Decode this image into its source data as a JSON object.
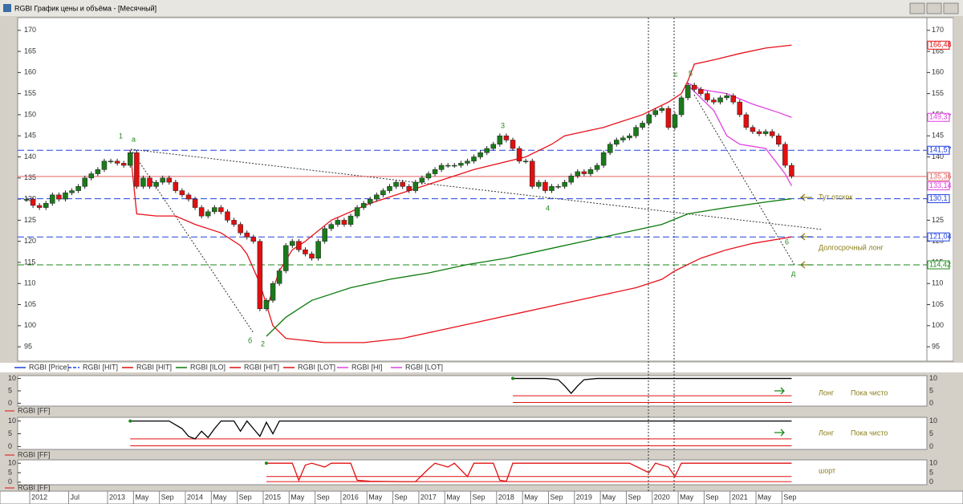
{
  "window_title": "RGBI График цены и объёма - [Месячный]",
  "chart_data": {
    "type": "candlestick",
    "categories": [
      null,
      "2012",
      null,
      null,
      null,
      null,
      null,
      "Jul",
      null,
      null,
      null,
      null,
      null,
      "2013",
      null,
      null,
      null,
      "May",
      null,
      null,
      null,
      "Sep",
      null,
      null,
      null,
      "2014",
      null,
      null,
      null,
      "May",
      null,
      null,
      null,
      "Sep",
      null,
      null,
      null,
      "2015",
      null,
      null,
      null,
      "May",
      null,
      null,
      null,
      "Sep",
      null,
      null,
      null,
      "2016",
      null,
      null,
      null,
      "May",
      null,
      null,
      null,
      "Sep",
      null,
      null,
      null,
      "2017",
      null,
      null,
      null,
      "May",
      null,
      null,
      null,
      "Sep",
      null,
      null,
      null,
      "2018",
      null,
      null,
      null,
      "May",
      null,
      null,
      null,
      "Sep",
      null,
      null,
      null,
      "2019",
      null,
      null,
      null,
      "May",
      null,
      null,
      null,
      "Sep",
      null,
      null,
      null,
      "2020",
      null,
      null,
      null,
      "May",
      null,
      null,
      null,
      "Sep",
      null,
      null,
      null,
      "2021",
      null,
      null,
      null,
      "May",
      null,
      null,
      null,
      "Sep",
      null
    ],
    "close": [
      130,
      128.5,
      128,
      129,
      131,
      130,
      131.5,
      132,
      133,
      135,
      136,
      137,
      139,
      139,
      138.5,
      138,
      141,
      133,
      135,
      133,
      134,
      135,
      134,
      132,
      131,
      130,
      128,
      126,
      127,
      128,
      127,
      125,
      124,
      122,
      121,
      120,
      104,
      106,
      110,
      113,
      119,
      120,
      118,
      117,
      116,
      120,
      123,
      124,
      125,
      124,
      126,
      128,
      129,
      130,
      131,
      132,
      133,
      134,
      133,
      132,
      134,
      135,
      136,
      137,
      138,
      138,
      138,
      138.5,
      139,
      140,
      141,
      142,
      143,
      145,
      144,
      142,
      139,
      139,
      133,
      134,
      132,
      133,
      133,
      134,
      135.5,
      136.5,
      136,
      137,
      138,
      141,
      143,
      144,
      144.5,
      145,
      147,
      148,
      150,
      151,
      151.5,
      147,
      150,
      154,
      157,
      156,
      155,
      153.5,
      153,
      154,
      154.5,
      153,
      150,
      147,
      146,
      145.5,
      146,
      145,
      143,
      138,
      135.5
    ],
    "up_color": "#1a7a1a",
    "down_color": "#e01010",
    "ylim": [
      91.6,
      173.0
    ],
    "yticks": [
      170,
      165,
      160,
      155,
      150,
      145,
      140,
      135,
      130,
      125,
      120,
      115,
      110,
      105,
      100,
      95
    ],
    "overlays": [
      {
        "color": "#e8101a",
        "x": [
          37,
          39,
          41,
          43,
          47,
          53,
          61,
          69,
          77,
          81,
          83,
          89,
          95,
          99,
          101,
          102,
          103,
          106,
          110,
          114,
          118
        ],
        "values": [
          104,
          113,
          118,
          120,
          125,
          129,
          133,
          137,
          140,
          143,
          145,
          147,
          150,
          153,
          155,
          158,
          162,
          163,
          164.5,
          165.8,
          166.48
        ]
      },
      {
        "color": "#e8101a",
        "x": [
          16,
          17,
          20,
          23,
          26,
          30,
          33,
          34,
          36,
          38,
          40,
          46,
          52,
          58,
          64,
          70,
          76,
          82,
          88,
          94,
          98,
          100,
          104,
          108,
          112,
          118
        ],
        "values": [
          141.5,
          126.5,
          126,
          126,
          124,
          122,
          119,
          117,
          110,
          100,
          97,
          96,
          96,
          97,
          99,
          101,
          103,
          105,
          107,
          109,
          111,
          113,
          116,
          118,
          119.5,
          121.04
        ]
      },
      {
        "color": "#0a7a0a",
        "x": [
          37,
          40,
          44,
          50,
          56,
          62,
          68,
          74,
          80,
          86,
          92,
          98,
          102,
          108,
          114,
          118
        ],
        "values": [
          97.5,
          102,
          106,
          109,
          111,
          112.5,
          114.5,
          116,
          118,
          120,
          122,
          124,
          126.5,
          128,
          129.3,
          130.1
        ]
      },
      {
        "color": "#e040e0",
        "x": [
          102,
          104,
          108,
          112,
          116,
          118
        ],
        "values": [
          157.5,
          156,
          155,
          152.5,
          150.5,
          149.37
        ]
      },
      {
        "color": "#e040e0",
        "x": [
          102,
          106,
          108,
          110,
          114,
          117,
          118
        ],
        "values": [
          157,
          151,
          145,
          143,
          142,
          136,
          133.14
        ]
      }
    ],
    "price_labels": [
      {
        "value": 166.48,
        "label": "166,48",
        "color": "#e01010",
        "line": null
      },
      {
        "value": 149.37,
        "label": "149,37",
        "color": "#e040e0",
        "line": null
      },
      {
        "value": 141.57,
        "label": "141,57",
        "color": "#2040e0",
        "line": "dash"
      },
      {
        "value": 135.36,
        "label": "135,36",
        "color": "#e06060",
        "line": "solid"
      },
      {
        "value": 133.14,
        "label": "133,14",
        "color": "#e040e0",
        "line": null
      },
      {
        "value": 130.1,
        "label": "130,1",
        "color": "#2040e0",
        "line": "dash"
      },
      {
        "value": 121.04,
        "label": "121,04",
        "color": "#2040e0",
        "line": "dash"
      },
      {
        "value": 114.42,
        "label": "114,42",
        "color": "#1a8a1a",
        "line": "dash"
      }
    ],
    "annotations": [
      "1",
      "а",
      "3",
      "4",
      "с",
      "5",
      "б",
      "2",
      "6",
      "д",
      "Тут отскок",
      "Долгосрочный лонг"
    ],
    "legend": [
      {
        "name": "RGBI [Price]",
        "color": "#2040e0",
        "dash": false
      },
      {
        "name": "RGBI [HIT]",
        "color": "#2040e0",
        "dash": true
      },
      {
        "name": "RGBI [HIT]",
        "color": "#e01010",
        "dash": false
      },
      {
        "name": "RGBI [ILO]",
        "color": "#0a7a0a",
        "dash": false
      },
      {
        "name": "RGBI [HIT]",
        "color": "#e01010",
        "dash": false
      },
      {
        "name": "RGBI [LOT]",
        "color": "#e01010",
        "dash": false
      },
      {
        "name": "RGBI [HI]",
        "color": "#e040e0",
        "dash": false
      },
      {
        "name": "RGBI [LOT]",
        "color": "#e040e0",
        "dash": false
      }
    ],
    "panels": [
      {
        "label": "RGBI [FF]",
        "notes": [
          "Лонг",
          "Пока чисто"
        ],
        "color": "#000000",
        "ylim": [
          -0.5,
          10.5
        ],
        "yticks": [
          10,
          5,
          0
        ],
        "levels": [
          3,
          0.3
        ],
        "x": [
          75,
          80,
          82,
          83,
          84,
          85,
          86,
          88,
          118
        ],
        "values": [
          10,
          10,
          9.5,
          7,
          4,
          7,
          9.5,
          10,
          10
        ]
      },
      {
        "label": "RGBI [FF]",
        "notes": [
          "Лонг",
          "Пока чисто"
        ],
        "color": "#000000",
        "ylim": [
          -0.5,
          10.5
        ],
        "yticks": [
          10,
          5,
          0
        ],
        "levels": [
          3,
          0.3
        ],
        "x": [
          16,
          22,
          24,
          25,
          26,
          27,
          28,
          29,
          30,
          32,
          33,
          34,
          35,
          36,
          37,
          38,
          39,
          118
        ],
        "values": [
          10,
          10,
          7,
          4,
          3,
          6,
          3.5,
          7,
          10,
          10,
          6,
          10,
          7,
          4,
          9.5,
          5,
          10,
          10
        ]
      },
      {
        "label": "RGBI [FF]",
        "notes": [
          "шорт"
        ],
        "color": "#e01010",
        "ylim": [
          -0.5,
          10.5
        ],
        "yticks": [
          10,
          5,
          0
        ],
        "levels": [
          3,
          0.3
        ],
        "x": [
          37,
          41,
          42,
          43,
          44,
          46,
          47,
          50,
          51,
          53,
          58,
          60,
          62,
          63,
          65,
          66,
          68,
          69,
          72,
          73,
          74,
          75,
          93,
          96,
          97,
          99,
          100,
          101,
          118
        ],
        "values": [
          10,
          10,
          1,
          9,
          10,
          8,
          10,
          10,
          1,
          0.5,
          0.3,
          0.3,
          7,
          10,
          8,
          10,
          3,
          10,
          10,
          1,
          0.5,
          10,
          10,
          5,
          10,
          8,
          3,
          10,
          10
        ]
      }
    ]
  }
}
